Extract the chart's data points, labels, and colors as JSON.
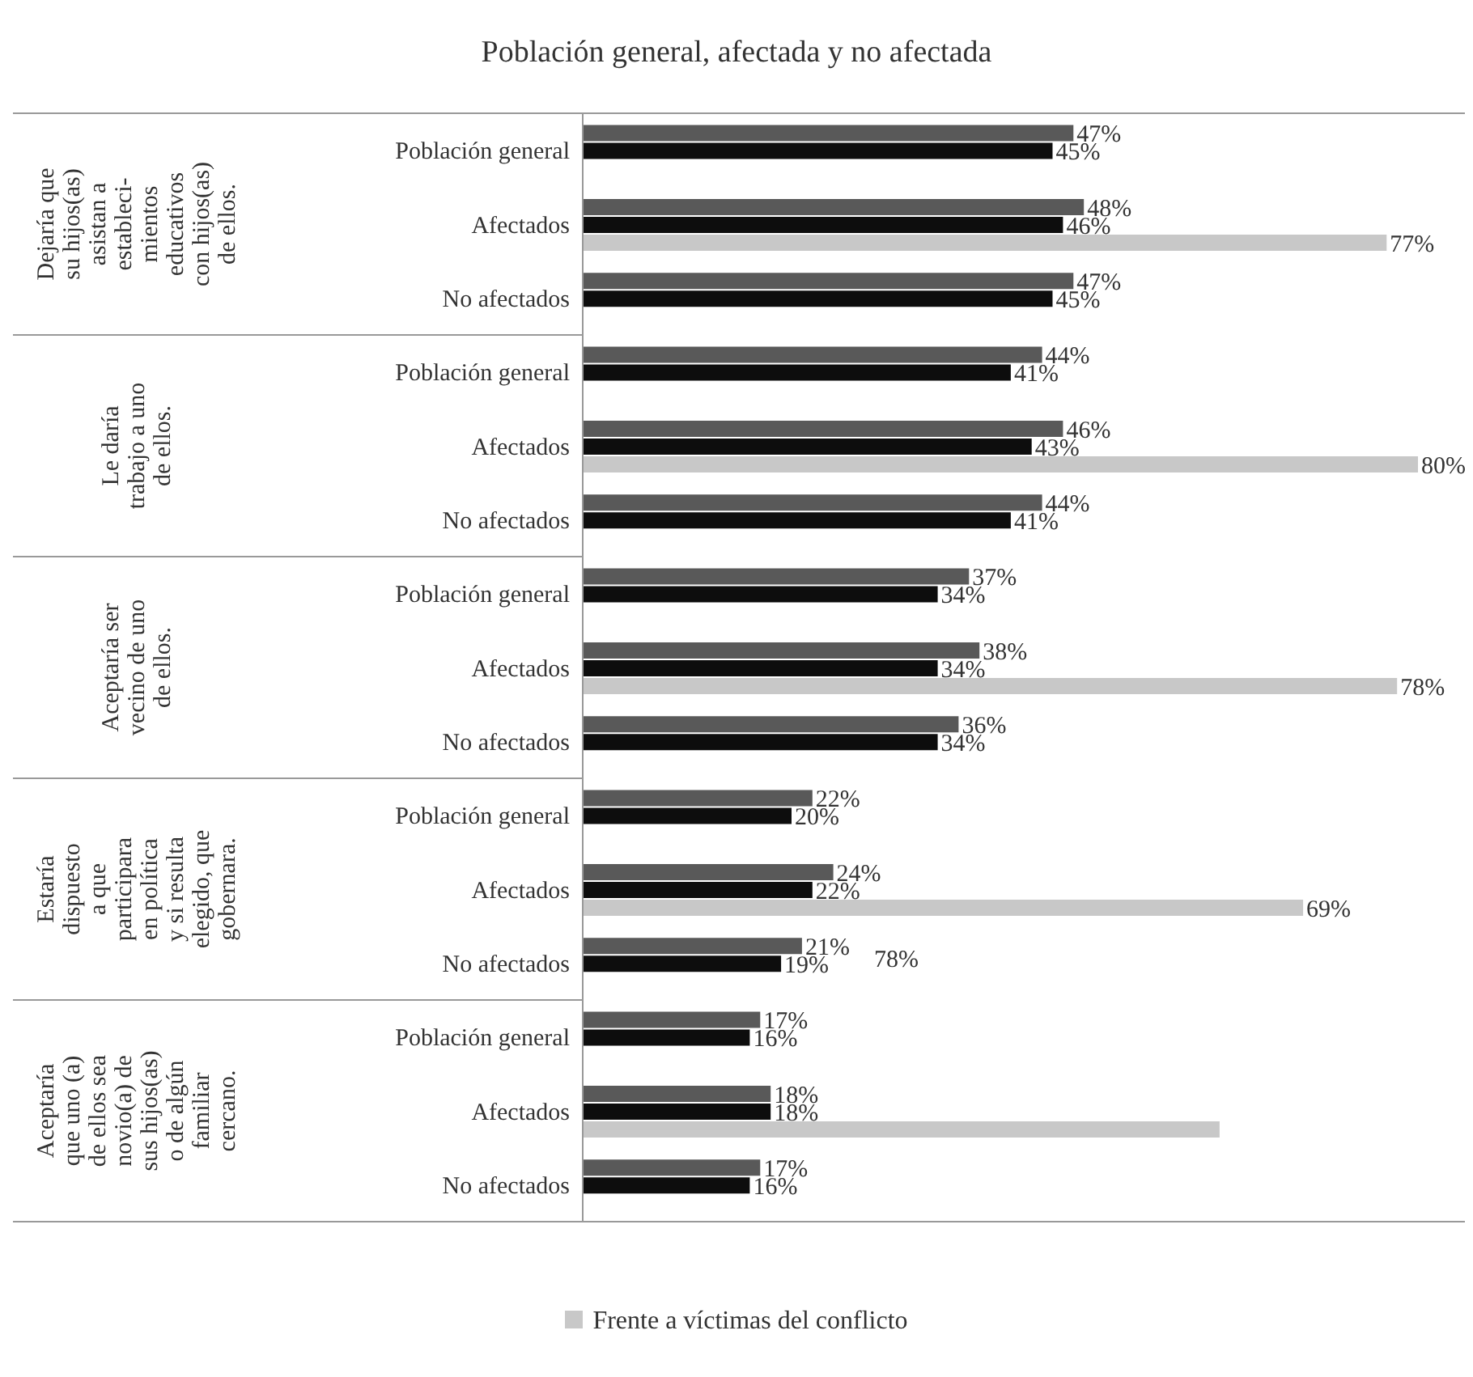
{
  "chart_data": {
    "type": "bar",
    "orientation": "horizontal",
    "title": "Población general, afectada y no afectada",
    "categories": [
      "Población general",
      "Afectados",
      "No afectados",
      "Población general",
      "Afectados",
      "No afectados",
      "Población general",
      "Afectados",
      "No afectados",
      "Población general",
      "Afectados",
      "No afectados",
      "Población general",
      "Afectados",
      "No afectados"
    ],
    "series": [
      {
        "color": "#595959",
        "values": [
          47,
          48,
          47,
          44,
          46,
          44,
          37,
          38,
          36,
          22,
          24,
          21,
          17,
          18,
          17
        ],
        "value_labels": [
          "47%",
          "48%",
          "47%",
          "44%",
          "46%",
          "44%",
          "37%",
          "38%",
          "36%",
          "22%",
          "24%",
          "21%",
          "17%",
          "18%",
          "17%"
        ]
      },
      {
        "color": "#0d0d0d",
        "values": [
          45,
          46,
          45,
          41,
          43,
          41,
          34,
          34,
          34,
          20,
          22,
          19,
          16,
          18,
          16
        ],
        "value_labels": [
          "45%",
          "46%",
          "45%",
          "41%",
          "43%",
          "41%",
          "34%",
          "34%",
          "34%",
          "20%",
          "22%",
          "19%",
          "16%",
          "18%",
          "16%"
        ]
      },
      {
        "name": "Frente a víctimas del conflicto",
        "color": "#c8c8c8",
        "values": [
          null,
          77,
          null,
          null,
          80,
          null,
          null,
          78,
          null,
          null,
          69,
          null,
          null,
          61,
          null
        ],
        "value_labels": [
          null,
          "77%",
          null,
          null,
          "80%",
          null,
          null,
          "78%",
          null,
          null,
          "69%",
          null,
          null,
          null,
          null
        ]
      }
    ],
    "annotations": [
      "Dejaría que\nsu hijos(as)\nasistan a\nestableci-\nmientos\neducativos\ncon hijos(as)\nde ellos.",
      "Le daría\ntrabajo a uno\nde ellos.",
      "Aceptaría ser\nvecino de uno\nde ellos.",
      "Estaría\ndispuesto\na que\nparticipara\nen política\ny si resulta\nelegido, que\ngobernara.",
      "Aceptaría\nque uno (a)\nde ellos sea\nnovio(a) de\nsus hijos(as)\no de algún\nfamiliar\ncercano.",
      "78%"
    ],
    "legend": "bottom"
  }
}
